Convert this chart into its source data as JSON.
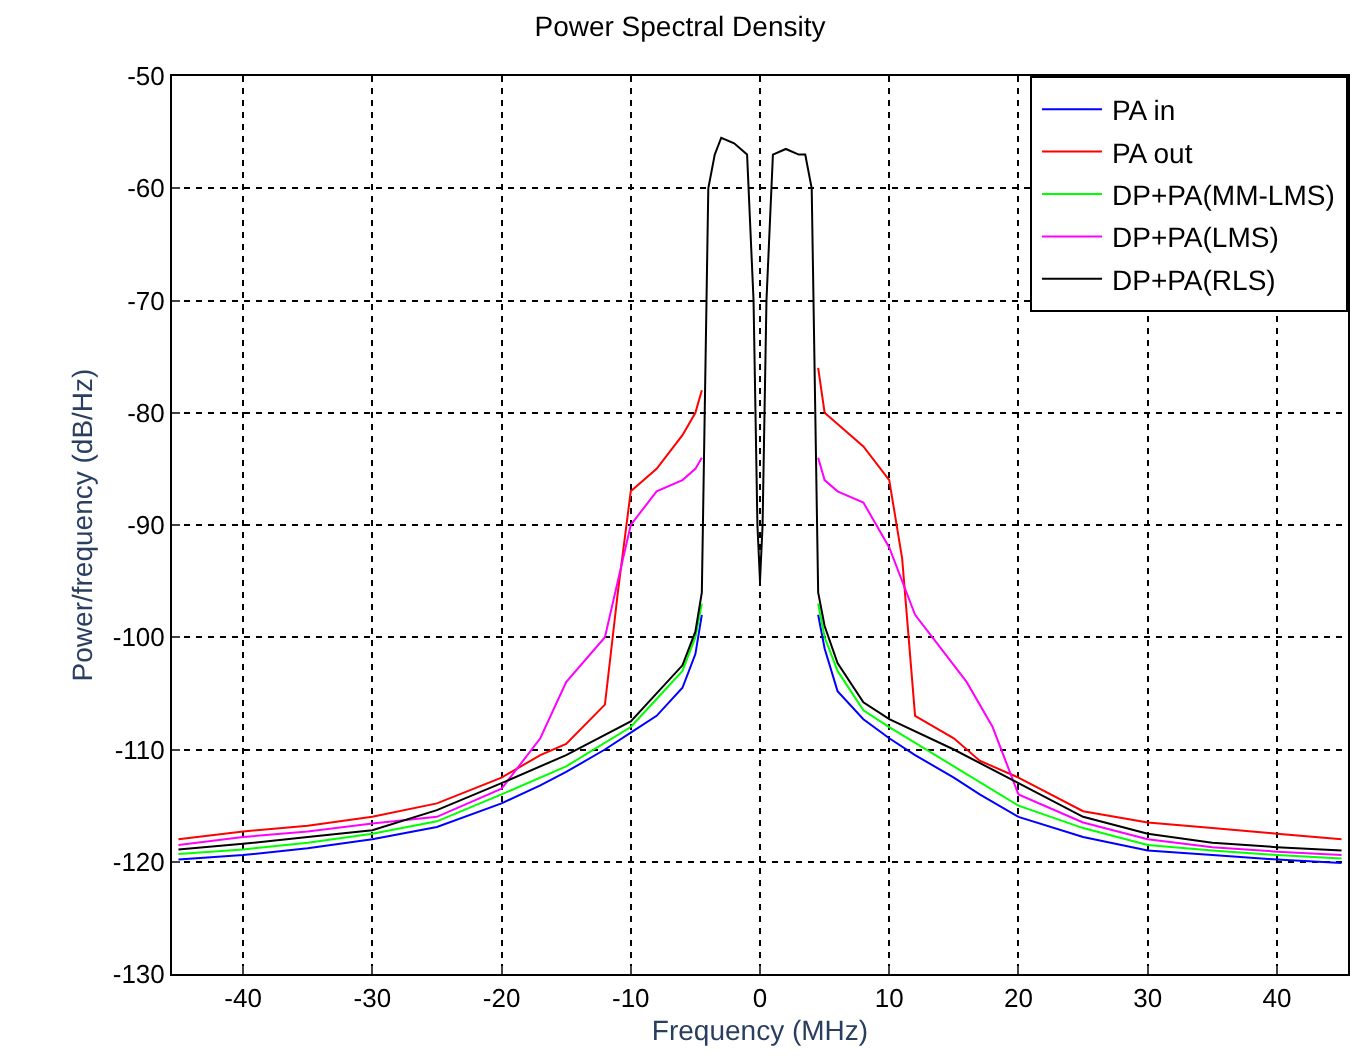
{
  "chart_data": {
    "type": "line",
    "title": "Power Spectral Density",
    "xlabel": "Frequency (MHz)",
    "ylabel": "Power/frequency (dB/Hz)",
    "xlim": [
      -45.5,
      45.5
    ],
    "xticks": [
      -40,
      -30,
      -20,
      -10,
      0,
      10,
      20,
      30,
      40
    ],
    "ylim": [
      -130,
      -50
    ],
    "yticks": [
      -130,
      -120,
      -110,
      -100,
      -90,
      -80,
      -70,
      -60,
      -50
    ],
    "grid": true,
    "legend": "top right",
    "marker": "none",
    "line_style": "solid",
    "series": [
      {
        "name": "PA in",
        "color": "#0000ff",
        "x": [
          -45,
          -40,
          -35,
          -30,
          -25,
          -20,
          -17,
          -15,
          -12,
          -10,
          -8,
          -6,
          -5,
          -4.5,
          -4,
          -3.5,
          -3,
          -2,
          -1,
          -0.5,
          -0.2,
          0,
          0.2,
          0.5,
          1,
          2,
          3,
          3.5,
          4,
          4.5,
          5,
          6,
          8,
          10,
          12,
          15,
          17,
          20,
          25,
          30,
          35,
          40,
          45
        ],
        "values": [
          -119.8,
          -119.4,
          -118.8,
          -118,
          -116.9,
          -114.8,
          -113.2,
          -112,
          -110,
          -108.5,
          -107,
          -104.5,
          -101.5,
          -98,
          null,
          null,
          null,
          null,
          null,
          null,
          null,
          null,
          null,
          null,
          null,
          null,
          null,
          null,
          null,
          -98,
          -101,
          -104.8,
          -107.3,
          -109,
          -110.5,
          -112.5,
          -114,
          -116,
          -117.8,
          -119,
          -119.4,
          -119.8,
          -120.1
        ]
      },
      {
        "name": "PA out",
        "color": "#ff0000",
        "x": [
          -45,
          -40,
          -35,
          -30,
          -25,
          -20,
          -17,
          -15,
          -12,
          -11,
          -10,
          -8,
          -6,
          -5,
          -4.5,
          -4,
          -3.5,
          -3,
          -2,
          -1,
          -0.5,
          -0.2,
          0,
          0.2,
          0.5,
          1,
          2,
          3,
          3.5,
          4,
          4.5,
          5,
          6,
          8,
          10,
          11,
          12,
          15,
          17,
          20,
          25,
          30,
          35,
          40,
          45
        ],
        "values": [
          -118,
          -117.3,
          -116.8,
          -116,
          -114.8,
          -112.5,
          -110.5,
          -109.5,
          -106,
          -96,
          -87,
          -85,
          -82,
          -80,
          -78,
          null,
          null,
          null,
          null,
          null,
          null,
          null,
          null,
          null,
          null,
          null,
          null,
          null,
          null,
          null,
          -76,
          -80,
          -81,
          -83,
          -86,
          -93,
          -107,
          -109,
          -111,
          -112.5,
          -115.5,
          -116.5,
          -117,
          -117.5,
          -118
        ]
      },
      {
        "name": "DP+PA(MM-LMS)",
        "color": "#00ff00",
        "x": [
          -45,
          -40,
          -35,
          -30,
          -25,
          -20,
          -15,
          -10,
          -8,
          -6,
          -5,
          -4.5,
          -4,
          -3.5,
          -3,
          -2,
          -1,
          -0.5,
          -0.2,
          0,
          0.2,
          0.5,
          1,
          2,
          3,
          3.5,
          4,
          4.5,
          5,
          6,
          8,
          10,
          15,
          20,
          25,
          30,
          35,
          40,
          45
        ],
        "values": [
          -119.3,
          -118.9,
          -118.3,
          -117.5,
          -116.4,
          -114,
          -111.5,
          -108,
          -105.5,
          -103,
          -100,
          -97,
          null,
          null,
          null,
          null,
          null,
          null,
          null,
          null,
          null,
          null,
          null,
          null,
          null,
          null,
          null,
          -97,
          -100,
          -103,
          -106.5,
          -108,
          -111.5,
          -115,
          -117,
          -118.5,
          -119,
          -119.4,
          -119.7
        ]
      },
      {
        "name": "DP+PA(LMS)",
        "color": "#ff00ff",
        "x": [
          -45,
          -40,
          -35,
          -30,
          -25,
          -20,
          -17,
          -15,
          -12,
          -10,
          -8,
          -6,
          -5,
          -4.5,
          -4,
          -3.5,
          -3,
          -2,
          -1,
          -0.5,
          -0.2,
          0,
          0.2,
          0.5,
          1,
          2,
          3,
          3.5,
          4,
          4.5,
          5,
          6,
          8,
          10,
          12,
          14,
          16,
          18,
          20,
          25,
          30,
          35,
          40,
          45
        ],
        "values": [
          -118.5,
          -117.8,
          -117.3,
          -116.6,
          -116,
          -113.5,
          -109,
          -104,
          -100,
          -90,
          -87,
          -86,
          -85,
          -84,
          null,
          null,
          null,
          null,
          null,
          null,
          null,
          null,
          null,
          null,
          null,
          null,
          null,
          null,
          null,
          -84,
          -86,
          -87,
          -88,
          -92,
          -98,
          -101,
          -104,
          -108,
          -114,
          -116.5,
          -118,
          -118.7,
          -119.1,
          -119.4
        ]
      },
      {
        "name": "DP+PA(RLS)",
        "color": "#000000",
        "x": [
          -45,
          -40,
          -35,
          -30,
          -25,
          -20,
          -15,
          -10,
          -8,
          -6,
          -5,
          -4.5,
          -4,
          -3.5,
          -3,
          -2,
          -1,
          -0.5,
          -0.2,
          0,
          0.2,
          0.5,
          1,
          2,
          3,
          3.5,
          4,
          4.5,
          5,
          6,
          8,
          10,
          15,
          20,
          25,
          30,
          35,
          40,
          45
        ],
        "values": [
          -118.9,
          -118.4,
          -117.8,
          -117.2,
          -115.4,
          -113,
          -110.5,
          -107.5,
          -105,
          -102.5,
          -99.5,
          -96,
          -60,
          -57,
          -55.5,
          -56,
          -57,
          -70,
          -90,
          -95,
          -90,
          -70,
          -57,
          -56.5,
          -57,
          -57,
          -60,
          -96,
          -99,
          -102.3,
          -105.8,
          -107.3,
          -110,
          -113,
          -116,
          -117.5,
          -118.3,
          -118.7,
          -119
        ]
      }
    ]
  }
}
